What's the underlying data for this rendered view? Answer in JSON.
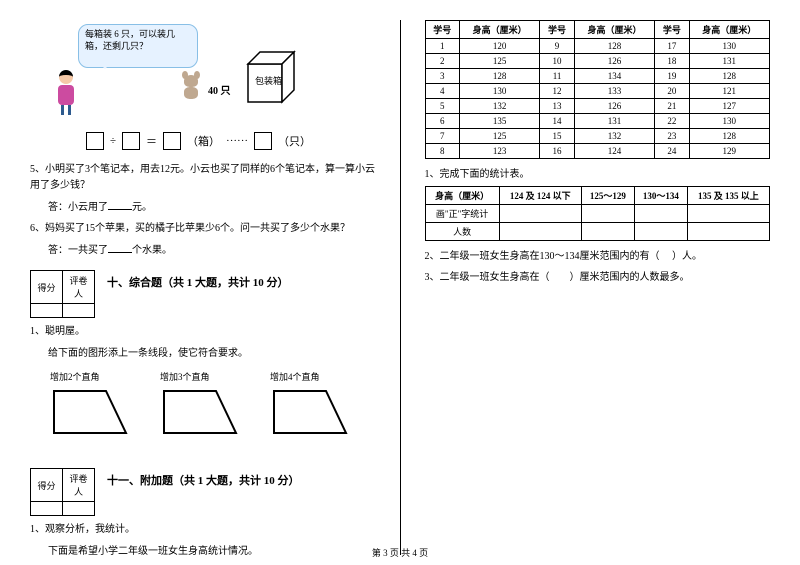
{
  "bubble_text": "每箱装 6 只，可以装几箱，还剩几只？",
  "qty_label": "40 只",
  "box_label": "包装箱",
  "eq": {
    "div": "÷",
    "eq": "＝",
    "unit1": "（箱）",
    "dots": "······",
    "unit2": "（只）"
  },
  "q5": "5、小明买了3个笔记本，用去12元。小云也买了同样的6个笔记本，算一算小云用了多少钱？",
  "a5_pre": "答：小云用了",
  "a5_post": "元。",
  "q6": "6、妈妈买了15个苹果，买的橘子比苹果少6个。问一共买了多少个水果？",
  "a6_pre": "答：一共买了",
  "a6_post": "个水果。",
  "score1": "得分",
  "score2": "评卷人",
  "sect10": "十、综合题（共 1 大题，共计 10 分）",
  "s10_q": "1、聪明屋。",
  "s10_sub": "给下面的图形添上一条线段，使它符合要求。",
  "shapes": [
    {
      "label": "增加2个直角"
    },
    {
      "label": "增加3个直角"
    },
    {
      "label": "增加4个直角"
    }
  ],
  "sect11": "十一、附加题（共 1 大题，共计 10 分）",
  "s11_q": "1、观察分析，我统计。",
  "s11_sub": "下面是希望小学二年级一班女生身高统计情况。",
  "ht_headers": [
    "学号",
    "身高（厘米）",
    "学号",
    "身高（厘米）",
    "学号",
    "身高（厘米）"
  ],
  "ht_rows": [
    [
      "1",
      "120",
      "9",
      "128",
      "17",
      "130"
    ],
    [
      "2",
      "125",
      "10",
      "126",
      "18",
      "131"
    ],
    [
      "3",
      "128",
      "11",
      "134",
      "19",
      "128"
    ],
    [
      "4",
      "130",
      "12",
      "133",
      "20",
      "121"
    ],
    [
      "5",
      "132",
      "13",
      "126",
      "21",
      "127"
    ],
    [
      "6",
      "135",
      "14",
      "131",
      "22",
      "130"
    ],
    [
      "7",
      "125",
      "15",
      "132",
      "23",
      "128"
    ],
    [
      "8",
      "123",
      "16",
      "124",
      "24",
      "129"
    ]
  ],
  "rt_q1": "1、完成下面的统计表。",
  "stat_headers": [
    "身高（厘米）",
    "124 及 124 以下",
    "125～129",
    "130～134",
    "135 及 135 以上"
  ],
  "stat_row1": "画\"正\"字统计",
  "stat_row2": "人数",
  "rt_q2a": "2、二年级一班女生身高在130～134厘米范围内的有（",
  "rt_q2b": "）人。",
  "rt_q3a": "3、二年级一班女生身高在（",
  "rt_q3b": "）厘米范围内的人数最多。",
  "footer": "第 3 页 共 4 页"
}
